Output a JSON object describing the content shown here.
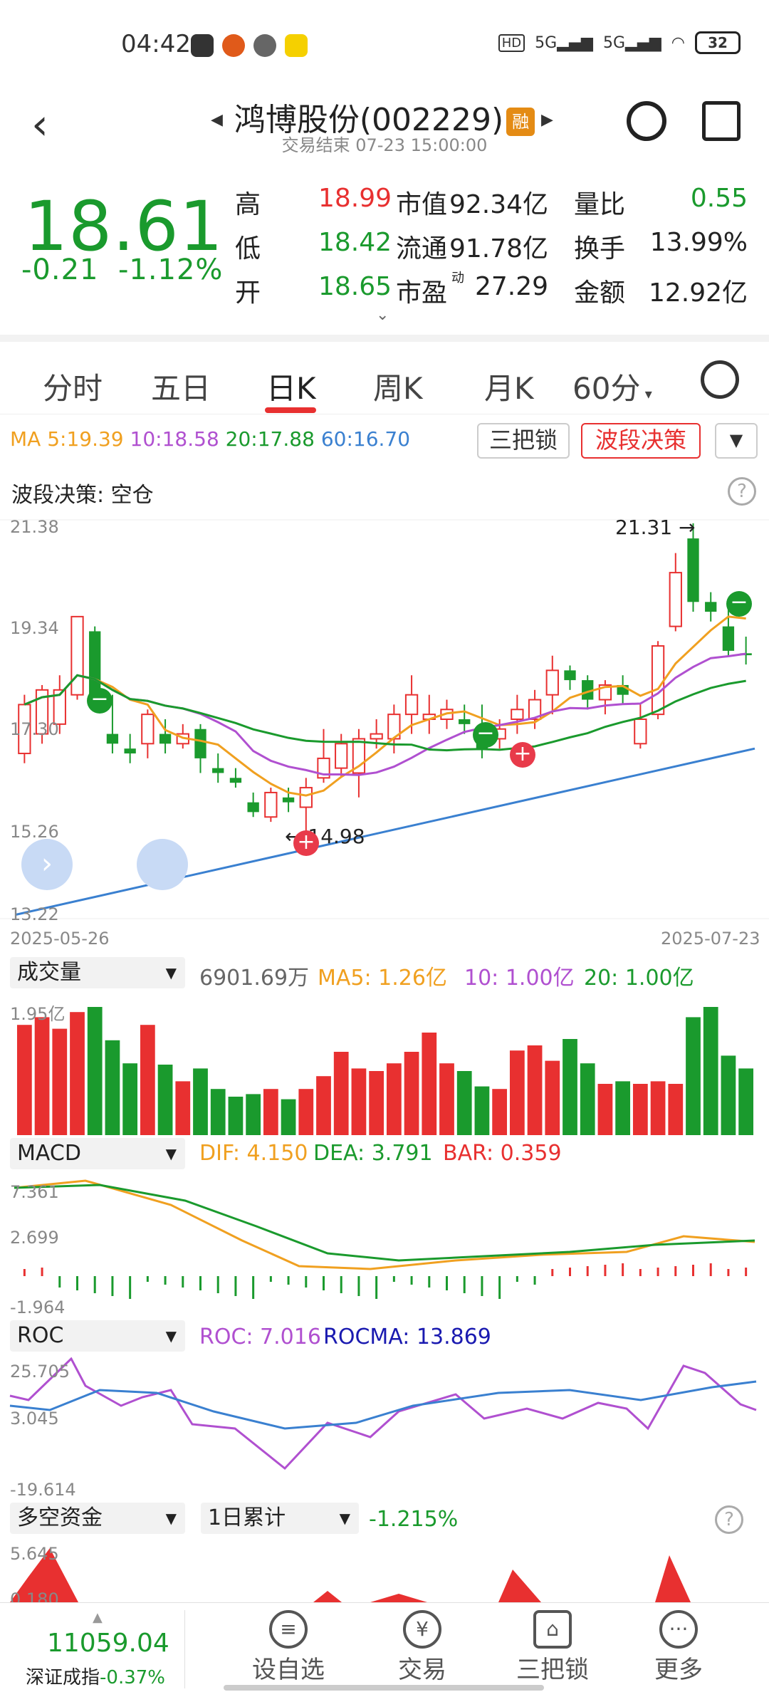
{
  "status": {
    "time": "04:42",
    "battery": "32",
    "net1": "5G",
    "net2": "5G"
  },
  "header": {
    "title": "鸿博股份(002229)",
    "rong": "融",
    "subtitle": "交易结束 07-23 15:00:00"
  },
  "quote": {
    "price": "18.61",
    "change": "-0.21",
    "change_pct": "-1.12%",
    "rows": [
      {
        "l1": "高",
        "v1": "18.99",
        "l2": "市值",
        "v2": "92.34亿",
        "l3": "量比",
        "v3": "0.55"
      },
      {
        "l1": "低",
        "v1": "18.42",
        "l2": "流通",
        "v2": "91.78亿",
        "l3": "换手",
        "v3": "13.99%"
      },
      {
        "l1": "开",
        "v1": "18.65",
        "l2": "市盈",
        "v2": "27.29",
        "l3": "金额",
        "v3": "12.92亿"
      }
    ],
    "pe_sup": "动",
    "colors": {
      "up": "#e83030",
      "down": "#1a9a2d"
    }
  },
  "tabs": [
    "分时",
    "五日",
    "日K",
    "周K",
    "月K",
    "60分"
  ],
  "active_tab": "日K",
  "ma": {
    "ma5": "MA 5:19.39",
    "ma10": "10:18.58",
    "ma20": "20:17.88",
    "ma60": "60:16.70"
  },
  "buttons": {
    "sanbasuo": "三把锁",
    "boduan": "波段决策"
  },
  "boduan_status": "波段决策: 空仓",
  "kline_axis": {
    "y1": "21.38",
    "y2": "19.34",
    "y3": "17.30",
    "y4": "15.26",
    "y5": "13.22",
    "date_start": "2025-05-26",
    "date_end": "2025-07-23",
    "high_label": "21.31",
    "low_label": "14.98"
  },
  "volume": {
    "label": "成交量",
    "value": "6901.69万",
    "ma5": "MA5: 1.26亿",
    "ma10": "10: 1.00亿",
    "ma20": "20: 1.00亿",
    "axis_top": "1.95亿"
  },
  "macd": {
    "label": "MACD",
    "dif": "DIF: 4.150",
    "dea": "DEA: 3.791",
    "bar": "BAR: 0.359",
    "y1": "7.361",
    "y2": "2.699",
    "y3": "-1.964"
  },
  "roc": {
    "label": "ROC",
    "roc": "ROC: 7.016",
    "rocma": "ROCMA: 13.869",
    "y1": "25.705",
    "y2": "3.045",
    "y3": "-19.614"
  },
  "duokong": {
    "label": "多空资金",
    "period": "1日累计",
    "value": "-1.215%",
    "y1": "5.645",
    "y2": "0.180"
  },
  "bottom": {
    "index_value": "11059.04",
    "index_name": "深证成指",
    "index_change": "-0.37%",
    "nav": [
      "设自选",
      "交易",
      "三把锁",
      "更多"
    ]
  },
  "chart_data": {
    "type": "candlestick",
    "x_range": [
      "2025-05-26",
      "2025-07-23"
    ],
    "ylim": [
      13.22,
      21.38
    ],
    "candles": [
      {
        "o": 16.6,
        "c": 17.6,
        "h": 17.8,
        "l": 16.4
      },
      {
        "o": 17.0,
        "c": 17.9,
        "h": 18.0,
        "l": 16.8
      },
      {
        "o": 17.2,
        "c": 17.9,
        "h": 18.2,
        "l": 17.0
      },
      {
        "o": 17.8,
        "c": 19.4,
        "h": 19.4,
        "l": 17.7
      },
      {
        "o": 19.1,
        "c": 17.8,
        "h": 19.2,
        "l": 17.6
      },
      {
        "o": 17.0,
        "c": 16.8,
        "h": 17.8,
        "l": 16.6
      },
      {
        "o": 16.7,
        "c": 16.6,
        "h": 17.0,
        "l": 16.4
      },
      {
        "o": 16.8,
        "c": 17.4,
        "h": 17.5,
        "l": 16.5
      },
      {
        "o": 17.0,
        "c": 16.8,
        "h": 17.3,
        "l": 16.6
      },
      {
        "o": 16.8,
        "c": 17.0,
        "h": 17.2,
        "l": 16.7
      },
      {
        "o": 17.1,
        "c": 16.5,
        "h": 17.2,
        "l": 16.2
      },
      {
        "o": 16.3,
        "c": 16.2,
        "h": 16.6,
        "l": 16.0
      },
      {
        "o": 16.1,
        "c": 16.0,
        "h": 16.3,
        "l": 15.9
      },
      {
        "o": 15.6,
        "c": 15.4,
        "h": 15.8,
        "l": 15.3
      },
      {
        "o": 15.3,
        "c": 15.8,
        "h": 15.9,
        "l": 15.2
      },
      {
        "o": 15.7,
        "c": 15.6,
        "h": 15.9,
        "l": 15.4
      },
      {
        "o": 15.5,
        "c": 15.9,
        "h": 16.1,
        "l": 14.98
      },
      {
        "o": 16.1,
        "c": 16.5,
        "h": 17.1,
        "l": 16.0
      },
      {
        "o": 16.3,
        "c": 16.8,
        "h": 17.0,
        "l": 16.1
      },
      {
        "o": 16.2,
        "c": 16.9,
        "h": 17.1,
        "l": 15.7
      },
      {
        "o": 16.9,
        "c": 17.0,
        "h": 17.3,
        "l": 16.7
      },
      {
        "o": 16.9,
        "c": 17.4,
        "h": 17.6,
        "l": 16.6
      },
      {
        "o": 17.4,
        "c": 17.8,
        "h": 18.2,
        "l": 17.0
      },
      {
        "o": 17.3,
        "c": 17.4,
        "h": 17.8,
        "l": 17.0
      },
      {
        "o": 17.3,
        "c": 17.5,
        "h": 17.7,
        "l": 17.1
      },
      {
        "o": 17.3,
        "c": 17.2,
        "h": 17.6,
        "l": 17.0
      },
      {
        "o": 16.8,
        "c": 16.7,
        "h": 17.6,
        "l": 16.5
      },
      {
        "o": 16.9,
        "c": 17.1,
        "h": 17.3,
        "l": 16.7
      },
      {
        "o": 17.3,
        "c": 17.5,
        "h": 17.8,
        "l": 17.0
      },
      {
        "o": 17.3,
        "c": 17.7,
        "h": 17.9,
        "l": 17.1
      },
      {
        "o": 17.8,
        "c": 18.3,
        "h": 18.6,
        "l": 17.4
      },
      {
        "o": 18.3,
        "c": 18.1,
        "h": 18.4,
        "l": 17.9
      },
      {
        "o": 18.1,
        "c": 17.7,
        "h": 18.2,
        "l": 17.5
      },
      {
        "o": 17.7,
        "c": 18.0,
        "h": 18.1,
        "l": 17.4
      },
      {
        "o": 18.0,
        "c": 17.8,
        "h": 18.2,
        "l": 17.6
      },
      {
        "o": 16.8,
        "c": 17.3,
        "h": 17.6,
        "l": 16.7
      },
      {
        "o": 17.4,
        "c": 18.8,
        "h": 18.9,
        "l": 17.3
      },
      {
        "o": 19.2,
        "c": 20.3,
        "h": 20.7,
        "l": 19.1
      },
      {
        "o": 21.0,
        "c": 19.7,
        "h": 21.31,
        "l": 19.5
      },
      {
        "o": 19.7,
        "c": 19.5,
        "h": 19.9,
        "l": 19.3
      },
      {
        "o": 19.2,
        "c": 18.7,
        "h": 19.6,
        "l": 18.6
      },
      {
        "o": 18.65,
        "c": 18.61,
        "h": 18.99,
        "l": 18.42
      }
    ]
  }
}
